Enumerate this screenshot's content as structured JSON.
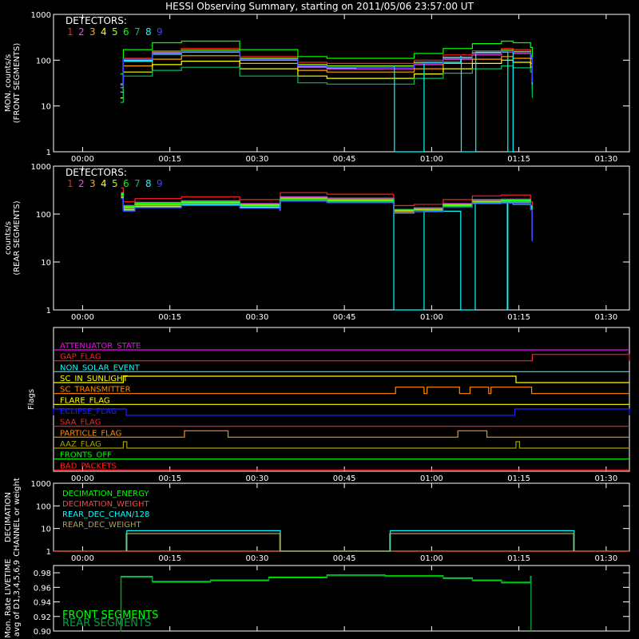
{
  "title": "HESSI Observing Summary, starting on 2011/05/06 23:57:00 UT",
  "x_ticks": [
    "00:00",
    "00:15",
    "00:30",
    "00:45",
    "01:00",
    "01:15",
    "01:30"
  ],
  "detector_colors": [
    "#ff2020",
    "#ff3cff",
    "#ffa500",
    "#ffff00",
    "#a0ff00",
    "#00ff00",
    "#00c060",
    "#00ffff",
    "#4040ff"
  ],
  "chart_data": [
    {
      "type": "line",
      "ylabel": "MON. counts/s",
      "ylabel2": "(FRONT SEGMENTS)",
      "yscale": "log",
      "ylim": [
        1,
        1000
      ],
      "y_ticks": [
        "1",
        "10",
        "100",
        "1000"
      ],
      "legend_title": "DETECTORS:",
      "legend_items": [
        "1",
        "2",
        "3",
        "4",
        "5",
        "6",
        "7",
        "8",
        "9"
      ],
      "series": [
        {
          "name": "1",
          "color": "#ff2020",
          "x": [
            9.5,
            10,
            15,
            20,
            30,
            40,
            45,
            50,
            60,
            65,
            70,
            75,
            77,
            80,
            80.3
          ],
          "y": [
            30,
            110,
            160,
            180,
            120,
            90,
            85,
            85,
            100,
            130,
            160,
            180,
            170,
            130,
            40
          ]
        },
        {
          "name": "2",
          "color": "#ff3cff",
          "x": [
            9.5,
            10,
            15,
            20,
            30,
            40,
            45,
            50,
            60,
            65,
            70,
            75,
            77,
            80,
            80.3
          ],
          "y": [
            25,
            95,
            140,
            150,
            100,
            70,
            65,
            65,
            80,
            105,
            130,
            150,
            140,
            110,
            35
          ]
        },
        {
          "name": "3",
          "color": "#ffa500",
          "x": [
            9.5,
            10,
            15,
            20,
            30,
            40,
            45,
            50,
            60,
            65,
            70,
            75,
            77,
            80,
            80.3
          ],
          "y": [
            20,
            75,
            105,
            125,
            85,
            60,
            55,
            55,
            65,
            85,
            105,
            120,
            110,
            85,
            25
          ]
        },
        {
          "name": "4",
          "color": "#ffff00",
          "x": [
            9.5,
            10,
            15,
            20,
            30,
            40,
            45,
            50,
            60,
            65,
            70,
            75,
            77,
            80,
            80.3
          ],
          "y": [
            15,
            55,
            80,
            95,
            65,
            45,
            40,
            40,
            50,
            65,
            85,
            100,
            90,
            70,
            20
          ]
        },
        {
          "name": "5",
          "color": "#a0ff00",
          "x": [
            9.5,
            10,
            15,
            20,
            30,
            40,
            45,
            50,
            60,
            65,
            70,
            75,
            77,
            80,
            80.3
          ],
          "y": [
            30,
            100,
            150,
            165,
            110,
            80,
            75,
            75,
            90,
            115,
            145,
            165,
            155,
            120,
            35
          ]
        },
        {
          "name": "6",
          "color": "#00ff00",
          "x": [
            9.5,
            10,
            15,
            20,
            30,
            40,
            45,
            50,
            60,
            65,
            70,
            75,
            77,
            80,
            80.3
          ],
          "y": [
            50,
            170,
            240,
            260,
            170,
            120,
            110,
            110,
            140,
            180,
            230,
            260,
            240,
            190,
            60
          ]
        },
        {
          "name": "7",
          "color": "#00c060",
          "x": [
            9.5,
            10,
            15,
            20,
            30,
            40,
            45,
            50,
            60,
            65,
            70,
            75,
            77,
            80,
            80.3
          ],
          "y": [
            12,
            45,
            60,
            70,
            45,
            32,
            30,
            30,
            40,
            52,
            65,
            75,
            68,
            55,
            15
          ]
        },
        {
          "name": "8",
          "color": "#00ffff",
          "x": [
            9.5,
            10,
            15,
            20,
            30,
            40,
            45,
            50,
            56.5,
            56.6,
            61.6,
            61.7,
            68,
            68.1,
            70.5,
            70.6,
            76,
            76.1,
            77,
            80,
            80.3
          ],
          "y": [
            30,
            95,
            135,
            150,
            100,
            72,
            68,
            70,
            75,
            1,
            1,
            90,
            120,
            1,
            1,
            150,
            150,
            1,
            150,
            110,
            30
          ]
        },
        {
          "name": "9",
          "color": "#4040ff",
          "x": [
            9.5,
            10,
            15,
            20,
            30,
            40,
            45,
            50,
            60,
            65,
            70,
            75,
            77,
            80,
            80.3
          ],
          "y": [
            28,
            105,
            145,
            160,
            105,
            75,
            70,
            70,
            85,
            110,
            140,
            160,
            150,
            115,
            33
          ]
        }
      ]
    },
    {
      "type": "line",
      "ylabel": "counts/s",
      "ylabel2": "(REAR SEGMENTS)",
      "yscale": "log",
      "ylim": [
        1,
        1000
      ],
      "y_ticks": [
        "1",
        "10",
        "100",
        "1000"
      ],
      "legend_title": "DETECTORS:",
      "legend_items": [
        "1",
        "2",
        "3",
        "4",
        "5",
        "6",
        "7",
        "8",
        "9"
      ],
      "series": [
        {
          "name": "1",
          "color": "#ff2020",
          "x": [
            9.6,
            10,
            12,
            20,
            30,
            36.9,
            37,
            45,
            48,
            56.4,
            56.5,
            60,
            65,
            70,
            75,
            80,
            80.3
          ],
          "y": [
            350,
            180,
            210,
            230,
            200,
            175,
            280,
            260,
            260,
            250,
            150,
            160,
            200,
            240,
            250,
            180,
            40
          ]
        },
        {
          "name": "2",
          "color": "#ff3cff",
          "x": [
            9.6,
            10,
            12,
            20,
            30,
            36.9,
            37,
            45,
            48,
            56.4,
            56.5,
            60,
            65,
            70,
            75,
            80,
            80.3
          ],
          "y": [
            280,
            150,
            175,
            190,
            165,
            150,
            230,
            215,
            215,
            205,
            125,
            135,
            165,
            200,
            205,
            150,
            35
          ]
        },
        {
          "name": "3",
          "color": "#ffa500",
          "x": [
            9.6,
            10,
            12,
            20,
            30,
            36.9,
            37,
            45,
            48,
            56.4,
            56.5,
            60,
            65,
            70,
            75,
            80,
            80.3
          ],
          "y": [
            250,
            135,
            155,
            170,
            150,
            135,
            205,
            190,
            190,
            185,
            115,
            120,
            150,
            180,
            185,
            135,
            30
          ]
        },
        {
          "name": "4",
          "color": "#ffff00",
          "x": [
            9.6,
            10,
            12,
            20,
            30,
            36.9,
            37,
            45,
            48,
            56.4,
            56.5,
            60,
            65,
            70,
            75,
            80,
            80.3
          ],
          "y": [
            230,
            125,
            145,
            160,
            140,
            125,
            190,
            175,
            175,
            170,
            105,
            112,
            140,
            170,
            175,
            125,
            28
          ]
        },
        {
          "name": "5",
          "color": "#a0ff00",
          "x": [
            9.6,
            10,
            12,
            20,
            30,
            36.9,
            37,
            45,
            48,
            56.4,
            56.5,
            60,
            65,
            70,
            75,
            80,
            80.3
          ],
          "y": [
            260,
            140,
            160,
            175,
            155,
            140,
            210,
            195,
            195,
            190,
            118,
            125,
            155,
            185,
            190,
            140,
            32
          ]
        },
        {
          "name": "6",
          "color": "#00ff00",
          "x": [
            9.6,
            10,
            12,
            20,
            30,
            36.9,
            37,
            45,
            48,
            56.4,
            56.5,
            60,
            65,
            70,
            75,
            80,
            80.3
          ],
          "y": [
            270,
            145,
            168,
            182,
            160,
            145,
            220,
            205,
            205,
            195,
            122,
            130,
            160,
            190,
            195,
            145,
            33
          ]
        },
        {
          "name": "7",
          "color": "#00c060",
          "x": [
            9.6,
            10,
            12,
            20,
            30,
            36.9,
            37,
            45,
            48,
            56.4,
            56.5,
            60,
            65,
            70,
            75,
            80,
            80.3
          ],
          "y": [
            240,
            130,
            150,
            165,
            145,
            130,
            200,
            185,
            185,
            180,
            110,
            118,
            145,
            175,
            180,
            130,
            30
          ]
        },
        {
          "name": "8",
          "color": "#00ffff",
          "x": [
            9.6,
            10,
            12,
            20,
            30,
            36.9,
            37,
            45,
            48,
            56.4,
            56.5,
            61.6,
            61.7,
            68,
            68.1,
            70.5,
            70.6,
            76,
            76.1,
            77,
            80,
            80.3
          ],
          "y": [
            220,
            120,
            140,
            155,
            135,
            120,
            190,
            175,
            175,
            170,
            1,
            1,
            115,
            1,
            1,
            170,
            170,
            1,
            170,
            160,
            125,
            28
          ]
        },
        {
          "name": "9",
          "color": "#4040ff",
          "x": [
            9.6,
            10,
            12,
            20,
            30,
            36.9,
            37,
            45,
            48,
            56.4,
            56.5,
            60,
            65,
            70,
            75,
            80,
            80.3
          ],
          "y": [
            210,
            115,
            135,
            150,
            132,
            118,
            185,
            172,
            172,
            165,
            108,
            112,
            138,
            165,
            170,
            122,
            27
          ]
        }
      ]
    },
    {
      "type": "line",
      "ylabel": "Flags",
      "flags": [
        {
          "label": "ATTENUATOR_STATE",
          "color": "#ff00ff",
          "steps": []
        },
        {
          "label": "GAP_FLAG",
          "color": "#ff2020",
          "steps": [
            [
              80.3,
              97
            ]
          ]
        },
        {
          "label": "NON_SOLAR_EVENT",
          "color": "#00ffff",
          "steps": []
        },
        {
          "label": "SC_IN_SUNLIGHT",
          "color": "#ffff00",
          "steps": [
            [
              10,
              77.5
            ]
          ]
        },
        {
          "label": "SC_TRANSMITTER",
          "color": "#ff8c00",
          "steps": [
            [
              56.8,
              61.7
            ],
            [
              62.2,
              67.8
            ],
            [
              69.6,
              72.8
            ],
            [
              73.2,
              80.2
            ]
          ]
        },
        {
          "label": "FLARE_FLAG",
          "color": "#ffff00",
          "steps": []
        },
        {
          "label": "ECLIPSE_FLAG",
          "color": "#2020ff",
          "steps": [
            [
              -2,
              10.5
            ],
            [
              77.3,
              97
            ]
          ]
        },
        {
          "label": "SAA_FLAG",
          "color": "#ff2020",
          "steps": []
        },
        {
          "label": "PARTICLE_FLAG",
          "color": "#ff8c00",
          "steps": [
            [
              20.5,
              28
            ],
            [
              67.5,
              72.5
            ]
          ]
        },
        {
          "label": "AAZ_FLAG",
          "color": "#a0a000",
          "steps": [
            [
              10,
              10.6
            ],
            [
              77.5,
              78.1
            ]
          ]
        },
        {
          "label": "FRONTS_OFF",
          "color": "#00ff00",
          "steps": []
        },
        {
          "label": "BAD_PACKETS",
          "color": "#ff2020",
          "steps": []
        }
      ]
    },
    {
      "type": "line",
      "ylabel": "DECIMATION",
      "ylabel2": "CHANNEL or weight",
      "yscale": "log",
      "ylim": [
        1,
        1000
      ],
      "y_ticks": [
        "1",
        "10",
        "100",
        "1000"
      ],
      "legend_items": [
        "DECIMATION_ENERGY",
        "DECIMATION_WEIGHT",
        "REAR_DEC_CHAN/128",
        "REAR_DEC_WEIGHT"
      ],
      "series": [
        {
          "name": "DECIMATION_ENERGY",
          "color": "#00ff00",
          "x": [
            -2,
            97
          ],
          "y": [
            1,
            1
          ]
        },
        {
          "name": "DECIMATION_WEIGHT",
          "color": "#ff4040",
          "x": [
            -2,
            97
          ],
          "y": [
            1,
            1
          ]
        },
        {
          "name": "REAR_DEC_CHAN/128",
          "color": "#00ffff",
          "x": [
            10.6,
            10.6,
            37,
            37,
            55.9,
            55.9,
            87.5,
            87.5
          ],
          "y": [
            1,
            8,
            8,
            1,
            1,
            8,
            8,
            1
          ]
        },
        {
          "name": "REAR_DEC_WEIGHT",
          "color": "#b0a050",
          "x": [
            10.5,
            10.5,
            36.9,
            36.9,
            55.8,
            55.8,
            87.4,
            87.4
          ],
          "y": [
            1,
            6,
            6,
            1,
            1,
            6,
            6,
            1
          ]
        }
      ]
    },
    {
      "type": "line",
      "ylabel": "Mon. Rate LIVETIME",
      "ylabel2": "avg of D1,3,4,5,6,9",
      "ylim": [
        0.9,
        0.99
      ],
      "y_ticks": [
        "0.90",
        "0.92",
        "0.94",
        "0.96",
        "0.98"
      ],
      "legend_items": [
        "FRONT SEGMENTS",
        "REAR SEGMENTS"
      ],
      "series": [
        {
          "name": "FRONT SEGMENTS",
          "color": "#00ff00",
          "x": [
            9.5,
            9.6,
            15,
            25,
            35,
            45,
            55,
            65,
            70,
            75,
            80,
            80.1
          ],
          "y": [
            0.9,
            0.975,
            0.968,
            0.97,
            0.974,
            0.977,
            0.976,
            0.973,
            0.97,
            0.967,
            0.975,
            0.9
          ]
        },
        {
          "name": "REAR SEGMENTS",
          "color": "#00a040",
          "x": [
            9.5,
            9.6,
            15,
            25,
            35,
            45,
            55,
            65,
            70,
            75,
            80,
            80.1
          ],
          "y": [
            0.9,
            0.974,
            0.967,
            0.969,
            0.973,
            0.976,
            0.975,
            0.972,
            0.969,
            0.966,
            0.974,
            0.9
          ]
        }
      ]
    }
  ]
}
